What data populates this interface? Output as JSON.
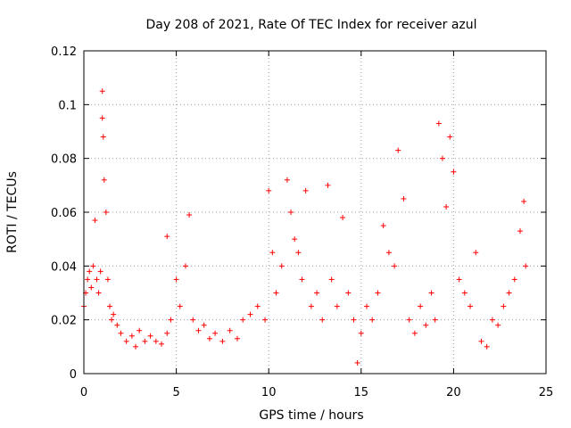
{
  "chart_data": {
    "type": "scatter",
    "title": "Day 208 of 2021, Rate Of TEC Index for receiver azul",
    "xlabel": "GPS time / hours",
    "ylabel": "ROTI / TECUs",
    "xlim": [
      0,
      25
    ],
    "ylim": [
      0,
      0.12
    ],
    "xticks": [
      0,
      5,
      10,
      15,
      20,
      25
    ],
    "xtick_labels": [
      "0",
      "5",
      "10",
      "15",
      "20",
      "25"
    ],
    "yticks": [
      0,
      0.02,
      0.04,
      0.06,
      0.08,
      0.1,
      0.12
    ],
    "ytick_labels": [
      "0",
      "0.02",
      "0.04",
      "0.06",
      "0.08",
      "0.1",
      "0.12"
    ],
    "grid": true,
    "marker": "+",
    "color": "#ff0000",
    "series": [
      {
        "x": [
          0.0,
          0.1,
          0.2,
          0.3,
          0.4,
          0.5,
          0.6,
          0.7,
          0.8,
          0.9,
          1.0,
          1.0,
          1.05,
          1.1,
          1.2,
          1.3,
          1.4,
          1.5,
          1.6,
          1.8,
          2.0,
          2.3,
          2.6,
          2.8,
          3.0,
          3.3,
          3.6,
          3.9,
          4.2,
          4.5,
          4.5,
          4.7,
          5.0,
          5.2,
          5.5,
          5.7,
          5.9,
          6.2,
          6.5,
          6.8,
          7.1,
          7.5,
          7.9,
          8.3,
          8.6,
          9.0,
          9.4,
          9.8,
          10.0,
          10.2,
          10.4,
          10.7,
          11.0,
          11.2,
          11.4,
          11.6,
          11.8,
          12.0,
          12.3,
          12.6,
          12.9,
          13.2,
          13.4,
          13.7,
          14.0,
          14.3,
          14.6,
          14.8,
          15.0,
          15.3,
          15.6,
          15.9,
          16.2,
          16.5,
          16.8,
          17.0,
          17.3,
          17.6,
          17.9,
          18.2,
          18.5,
          18.8,
          19.0,
          19.2,
          19.4,
          19.6,
          19.8,
          20.0,
          20.3,
          20.6,
          20.9,
          21.2,
          21.5,
          21.8,
          22.1,
          22.4,
          22.7,
          23.0,
          23.3,
          23.6,
          23.8,
          23.9
        ],
        "y": [
          0.025,
          0.03,
          0.035,
          0.038,
          0.032,
          0.04,
          0.057,
          0.035,
          0.03,
          0.038,
          0.105,
          0.095,
          0.088,
          0.072,
          0.06,
          0.035,
          0.025,
          0.02,
          0.022,
          0.018,
          0.015,
          0.012,
          0.014,
          0.01,
          0.016,
          0.012,
          0.014,
          0.012,
          0.011,
          0.015,
          0.051,
          0.02,
          0.035,
          0.025,
          0.04,
          0.059,
          0.02,
          0.016,
          0.018,
          0.013,
          0.015,
          0.012,
          0.016,
          0.013,
          0.02,
          0.022,
          0.025,
          0.02,
          0.068,
          0.045,
          0.03,
          0.04,
          0.072,
          0.06,
          0.05,
          0.045,
          0.035,
          0.068,
          0.025,
          0.03,
          0.02,
          0.07,
          0.035,
          0.025,
          0.058,
          0.03,
          0.02,
          0.004,
          0.015,
          0.025,
          0.02,
          0.03,
          0.055,
          0.045,
          0.04,
          0.083,
          0.065,
          0.02,
          0.015,
          0.025,
          0.018,
          0.03,
          0.02,
          0.093,
          0.08,
          0.062,
          0.088,
          0.075,
          0.035,
          0.03,
          0.025,
          0.045,
          0.012,
          0.01,
          0.02,
          0.018,
          0.025,
          0.03,
          0.035,
          0.053,
          0.064,
          0.04
        ]
      }
    ]
  }
}
